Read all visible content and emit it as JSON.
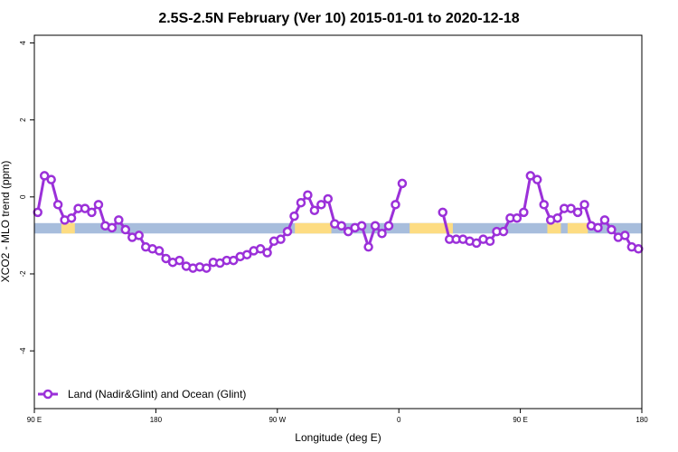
{
  "chart_data": {
    "type": "line",
    "title": "2.5S-2.5N February (Ver 10)   2015-01-01 to 2020-12-18",
    "xlabel": "Longitude (deg E)",
    "ylabel": "XCO2 - MLO trend (ppm)",
    "xlim": [
      90,
      540
    ],
    "ylim": [
      -5.5,
      4.2
    ],
    "x_ticks": [
      {
        "value": 90,
        "label": "90 E"
      },
      {
        "value": 180,
        "label": "180"
      },
      {
        "value": 270,
        "label": "90 W"
      },
      {
        "value": 360,
        "label": "0"
      },
      {
        "value": 450,
        "label": "90 E"
      },
      {
        "value": 540,
        "label": "180"
      }
    ],
    "y_ticks": [
      {
        "value": 4,
        "label": "4"
      },
      {
        "value": 2,
        "label": "2"
      },
      {
        "value": 0,
        "label": "0"
      },
      {
        "value": -2,
        "label": "-2"
      },
      {
        "value": -4,
        "label": "-4"
      }
    ],
    "grid": false,
    "legend_position": "bottom-left",
    "colors": {
      "series": "#9b30d9",
      "ocean_band": "#a7bddc",
      "land_band": "#fddc82"
    },
    "band": {
      "y_min": -0.95,
      "y_max": -0.68
    },
    "land_spans": [
      {
        "x0": 110,
        "x1": 120
      },
      {
        "x0": 283,
        "x1": 310
      },
      {
        "x0": 368,
        "x1": 400
      },
      {
        "x0": 470,
        "x1": 480
      },
      {
        "x0": 485,
        "x1": 500
      }
    ],
    "series": [
      {
        "name": "Land (Nadir&Glint) and Ocean (Glint)",
        "x": [
          92.5,
          97.5,
          102.5,
          107.5,
          112.5,
          117.5,
          122.5,
          127.5,
          132.5,
          137.5,
          142.5,
          147.5,
          152.5,
          157.5,
          162.5,
          167.5,
          172.5,
          177.5,
          182.5,
          187.5,
          192.5,
          197.5,
          202.5,
          207.5,
          212.5,
          217.5,
          222.5,
          227.5,
          232.5,
          237.5,
          242.5,
          247.5,
          252.5,
          257.5,
          262.5,
          267.5,
          272.5,
          277.5,
          282.5,
          287.5,
          292.5,
          297.5,
          302.5,
          307.5,
          312.5,
          317.5,
          322.5,
          327.5,
          332.5,
          337.5,
          342.5,
          347.5,
          352.5,
          357.5,
          362.5,
          null,
          392.5,
          397.5,
          402.5,
          407.5,
          412.5,
          417.5,
          422.5,
          427.5,
          432.5,
          437.5,
          442.5,
          447.5,
          452.5,
          457.5,
          462.5,
          467.5,
          472.5,
          477.5,
          482.5,
          487.5,
          492.5,
          497.5,
          502.5,
          507.5,
          512.5,
          517.5,
          522.5,
          527.5,
          532.5,
          537.5
        ],
        "values": [
          -0.4,
          0.55,
          0.45,
          -0.2,
          -0.6,
          -0.55,
          -0.3,
          -0.3,
          -0.4,
          -0.2,
          -0.75,
          -0.8,
          -0.6,
          -0.85,
          -1.05,
          -1.0,
          -1.3,
          -1.35,
          -1.4,
          -1.6,
          -1.7,
          -1.65,
          -1.8,
          -1.85,
          -1.82,
          -1.85,
          -1.7,
          -1.72,
          -1.65,
          -1.65,
          -1.55,
          -1.5,
          -1.4,
          -1.35,
          -1.45,
          -1.15,
          -1.1,
          -0.9,
          -0.5,
          -0.15,
          0.05,
          -0.35,
          -0.2,
          -0.05,
          -0.7,
          -0.75,
          -0.9,
          -0.8,
          -0.75,
          -1.3,
          -0.75,
          -0.95,
          -0.75,
          -0.2,
          0.35,
          null,
          -0.4,
          -1.1,
          -1.1,
          -1.1,
          -1.15,
          -1.2,
          -1.1,
          -1.15,
          -0.9,
          -0.9,
          -0.55,
          -0.55,
          -0.4,
          0.55,
          0.45,
          -0.2,
          -0.6,
          -0.55,
          -0.3,
          -0.3,
          -0.4,
          -0.2,
          -0.75,
          -0.8,
          -0.6,
          -0.85,
          -1.05,
          -1.0,
          -1.3,
          -1.35
        ]
      }
    ]
  }
}
